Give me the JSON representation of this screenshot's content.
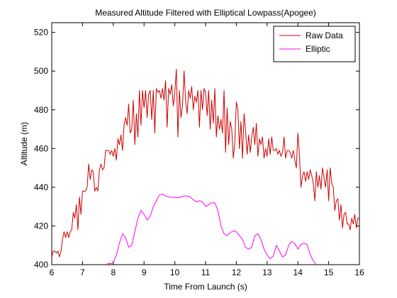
{
  "chart_data": {
    "type": "line",
    "title": "Measured Altitude Filtered with Elliptical Lowpass(Apogee)",
    "xlabel": "Time From Launch (s)",
    "ylabel": "Altitude (m)",
    "xlim": [
      6,
      16
    ],
    "ylim": [
      400,
      525
    ],
    "xticks": [
      6,
      7,
      8,
      9,
      10,
      11,
      12,
      13,
      14,
      15,
      16
    ],
    "yticks": [
      400,
      420,
      440,
      460,
      480,
      500,
      520
    ],
    "grid": false,
    "legend_position": "top-right",
    "series": [
      {
        "name": "Raw Data",
        "color": "#cc0000",
        "x": [
          6.0,
          6.05,
          6.1,
          6.15,
          6.2,
          6.25,
          6.3,
          6.35,
          6.4,
          6.45,
          6.5,
          6.55,
          6.6,
          6.65,
          6.7,
          6.75,
          6.8,
          6.85,
          6.9,
          6.95,
          7.0,
          7.05,
          7.1,
          7.15,
          7.2,
          7.25,
          7.3,
          7.35,
          7.4,
          7.45,
          7.5,
          7.55,
          7.6,
          7.65,
          7.7,
          7.75,
          7.8,
          7.85,
          7.9,
          7.95,
          8.0,
          8.05,
          8.1,
          8.15,
          8.2,
          8.25,
          8.3,
          8.35,
          8.4,
          8.45,
          8.5,
          8.55,
          8.6,
          8.65,
          8.7,
          8.75,
          8.8,
          8.85,
          8.9,
          8.95,
          9.0,
          9.05,
          9.1,
          9.15,
          9.2,
          9.25,
          9.3,
          9.35,
          9.4,
          9.45,
          9.5,
          9.55,
          9.6,
          9.65,
          9.7,
          9.75,
          9.8,
          9.85,
          9.9,
          9.95,
          10.0,
          10.05,
          10.1,
          10.15,
          10.2,
          10.25,
          10.3,
          10.35,
          10.4,
          10.45,
          10.5,
          10.55,
          10.6,
          10.65,
          10.7,
          10.75,
          10.8,
          10.85,
          10.9,
          10.95,
          11.0,
          11.05,
          11.1,
          11.15,
          11.2,
          11.25,
          11.3,
          11.35,
          11.4,
          11.45,
          11.5,
          11.55,
          11.6,
          11.65,
          11.7,
          11.75,
          11.8,
          11.85,
          11.9,
          11.95,
          12.0,
          12.05,
          12.1,
          12.15,
          12.2,
          12.25,
          12.3,
          12.35,
          12.4,
          12.45,
          12.5,
          12.55,
          12.6,
          12.65,
          12.7,
          12.75,
          12.8,
          12.85,
          12.9,
          12.95,
          13.0,
          13.05,
          13.1,
          13.15,
          13.2,
          13.25,
          13.3,
          13.35,
          13.4,
          13.45,
          13.5,
          13.55,
          13.6,
          13.65,
          13.7,
          13.75,
          13.8,
          13.85,
          13.9,
          13.95,
          14.0,
          14.05,
          14.1,
          14.15,
          14.2,
          14.25,
          14.3,
          14.35,
          14.4,
          14.45,
          14.5,
          14.55,
          14.6,
          14.65,
          14.7,
          14.75,
          14.8,
          14.85,
          14.9,
          14.95,
          15.0,
          15.05,
          15.1,
          15.15,
          15.2,
          15.25,
          15.3,
          15.35,
          15.4,
          15.45,
          15.5,
          15.55,
          15.6,
          15.65,
          15.7,
          15.75,
          15.8,
          15.85,
          15.9,
          15.95,
          16.0
        ],
        "y": [
          404,
          407,
          407,
          406,
          407,
          404,
          407,
          413,
          417,
          414,
          417,
          414,
          417,
          418,
          427,
          424,
          431,
          418,
          435,
          426,
          438,
          438,
          438,
          440,
          452,
          444,
          449,
          448,
          438,
          440,
          438,
          449,
          452,
          449,
          450,
          459,
          459,
          459,
          457,
          459,
          456,
          460,
          454,
          465,
          462,
          467,
          459,
          472,
          476,
          472,
          483,
          468,
          470,
          485,
          462,
          478,
          466,
          490,
          472,
          490,
          481,
          490,
          476,
          488,
          490,
          475,
          490,
          468,
          491,
          489,
          490,
          486,
          491,
          485,
          495,
          471,
          491,
          488,
          493,
          482,
          489,
          501,
          466,
          490,
          476,
          482,
          500,
          485,
          478,
          490,
          486,
          492,
          480,
          487,
          484,
          490,
          471,
          490,
          480,
          491,
          489,
          477,
          490,
          470,
          485,
          473,
          491,
          466,
          477,
          470,
          475,
          468,
          490,
          458,
          481,
          462,
          474,
          470,
          455,
          463,
          484,
          480,
          460,
          474,
          455,
          478,
          469,
          457,
          467,
          458,
          466,
          471,
          462,
          473,
          456,
          465,
          462,
          466,
          455,
          460,
          456,
          465,
          457,
          466,
          459,
          459,
          460,
          457,
          459,
          456,
          458,
          466,
          455,
          459,
          459,
          458,
          455,
          459,
          454,
          450,
          468,
          457,
          440,
          446,
          448,
          443,
          448,
          444,
          449,
          446,
          442,
          433,
          448,
          440,
          446,
          439,
          450,
          445,
          440,
          449,
          433,
          450,
          442,
          440,
          428,
          433,
          434,
          423,
          431,
          419,
          426,
          427,
          421,
          421,
          418,
          424,
          421,
          426,
          419,
          424,
          424
        ]
      },
      {
        "name": "Elliptic",
        "color": "#ff00ff",
        "x": [
          7.8,
          7.9,
          8.0,
          8.1,
          8.2,
          8.3,
          8.4,
          8.5,
          8.6,
          8.7,
          8.8,
          8.9,
          9.0,
          9.1,
          9.2,
          9.3,
          9.4,
          9.5,
          9.6,
          9.7,
          9.8,
          9.9,
          10.0,
          10.1,
          10.2,
          10.3,
          10.4,
          10.5,
          10.6,
          10.7,
          10.8,
          10.9,
          11.0,
          11.1,
          11.2,
          11.3,
          11.4,
          11.5,
          11.6,
          11.7,
          11.8,
          11.9,
          12.0,
          12.1,
          12.2,
          12.3,
          12.4,
          12.5,
          12.6,
          12.7,
          12.8,
          12.9,
          13.0,
          13.1,
          13.2,
          13.3,
          13.4,
          13.5,
          13.6,
          13.7,
          13.8,
          13.9,
          14.0,
          14.1,
          14.2,
          14.3,
          14.4,
          14.5,
          14.6
        ],
        "y": [
          400.5,
          400.5,
          401,
          405,
          411,
          416,
          414,
          409,
          410,
          417,
          424,
          428,
          426,
          423,
          425,
          430,
          433,
          436,
          436.5,
          435.5,
          435,
          434.8,
          434.8,
          434.5,
          435,
          435.5,
          435.5,
          435,
          433.5,
          432.5,
          433,
          432.5,
          430,
          431,
          432,
          432,
          428,
          420,
          416,
          415,
          416.5,
          417.5,
          417,
          415,
          413,
          409,
          408,
          409,
          415,
          416,
          413,
          408,
          405,
          403,
          404.5,
          410,
          407,
          404,
          405,
          410,
          412,
          411,
          408,
          410.5,
          411,
          410.5,
          405,
          402,
          400
        ]
      }
    ]
  }
}
